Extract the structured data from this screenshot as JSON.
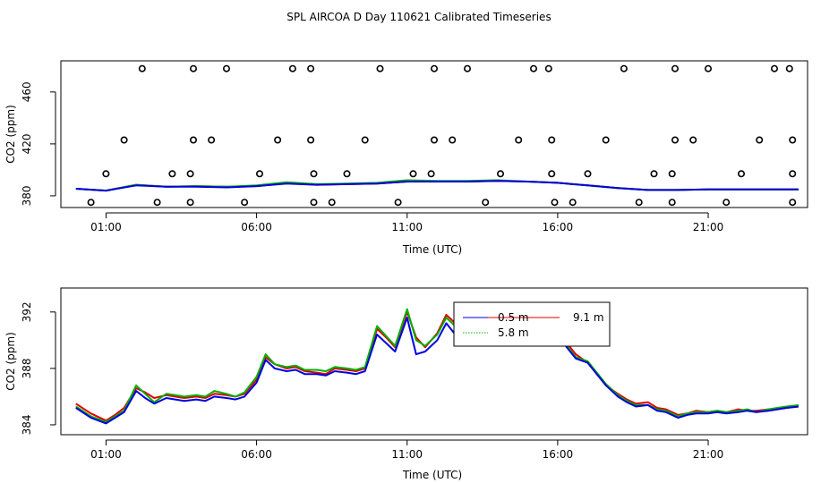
{
  "title": "SPL AIRCOA D  Day 110621  Calibrated Timeseries",
  "colors": {
    "red": "#e00000",
    "green": "#00b000",
    "blue": "#0000e0",
    "axis": "#000000"
  },
  "chart_data": [
    {
      "type": "line+scatter",
      "xlabel": "Time (UTC)",
      "ylabel": "CO2 (ppm)",
      "x_ticks": [
        "01:00",
        "06:00",
        "11:00",
        "16:00",
        "21:00"
      ],
      "x_tick_hours": [
        1,
        6,
        11,
        16,
        21
      ],
      "y_ticks": [
        "380",
        "420",
        "460"
      ],
      "y_tick_values": [
        380,
        420,
        460
      ],
      "xlim": [
        -0.5,
        24.3
      ],
      "ylim": [
        371,
        484
      ],
      "grid": false,
      "markers": {
        "marker": "open-circle",
        "points": [
          [
            0.5,
            375
          ],
          [
            1.0,
            397
          ],
          [
            1.6,
            423
          ],
          [
            2.2,
            478
          ],
          [
            2.7,
            375
          ],
          [
            3.2,
            397
          ],
          [
            3.8,
            375
          ],
          [
            3.8,
            397
          ],
          [
            3.9,
            423
          ],
          [
            3.9,
            478
          ],
          [
            4.5,
            423
          ],
          [
            5.0,
            478
          ],
          [
            5.6,
            375
          ],
          [
            6.1,
            397
          ],
          [
            6.7,
            423
          ],
          [
            7.2,
            478
          ],
          [
            7.8,
            478
          ],
          [
            7.8,
            423
          ],
          [
            7.9,
            397
          ],
          [
            7.9,
            375
          ],
          [
            8.5,
            375
          ],
          [
            9.0,
            397
          ],
          [
            9.6,
            423
          ],
          [
            10.1,
            478
          ],
          [
            10.7,
            375
          ],
          [
            11.2,
            397
          ],
          [
            11.8,
            397
          ],
          [
            11.9,
            423
          ],
          [
            11.9,
            478
          ],
          [
            12.5,
            423
          ],
          [
            13.0,
            478
          ],
          [
            13.6,
            375
          ],
          [
            14.1,
            397
          ],
          [
            14.7,
            423
          ],
          [
            15.2,
            478
          ],
          [
            15.7,
            478
          ],
          [
            15.8,
            423
          ],
          [
            15.8,
            397
          ],
          [
            15.9,
            375
          ],
          [
            16.5,
            375
          ],
          [
            17.0,
            397
          ],
          [
            17.6,
            423
          ],
          [
            18.2,
            478
          ],
          [
            18.7,
            375
          ],
          [
            19.2,
            397
          ],
          [
            19.8,
            397
          ],
          [
            19.8,
            375
          ],
          [
            19.9,
            423
          ],
          [
            19.9,
            478
          ],
          [
            20.5,
            423
          ],
          [
            21.0,
            478
          ],
          [
            21.6,
            375
          ],
          [
            22.1,
            397
          ],
          [
            22.7,
            423
          ],
          [
            23.2,
            478
          ],
          [
            23.7,
            478
          ],
          [
            23.8,
            423
          ],
          [
            23.8,
            397
          ],
          [
            23.8,
            375
          ]
        ]
      },
      "series": [
        {
          "color": "red",
          "x": [
            0,
            1,
            2,
            3,
            4,
            5,
            6,
            7,
            8,
            9,
            10,
            11,
            12,
            13,
            14,
            15,
            16,
            17,
            18,
            19,
            20,
            21,
            22,
            23,
            24
          ],
          "y": [
            385.5,
            384,
            388.5,
            387,
            387.5,
            387,
            387.5,
            390,
            388.5,
            389,
            389.5,
            391,
            391,
            391,
            391.5,
            391,
            390,
            388,
            386,
            384.5,
            384.5,
            385,
            385,
            385,
            385
          ]
        },
        {
          "color": "green",
          "x": [
            0,
            1,
            2,
            3,
            4,
            5,
            6,
            7,
            8,
            9,
            10,
            11,
            12,
            13,
            14,
            15,
            16,
            17,
            18,
            19,
            20,
            21,
            22,
            23,
            24
          ],
          "y": [
            385.5,
            384,
            388.5,
            387,
            387.5,
            387,
            388,
            390.5,
            389,
            389.5,
            390,
            392,
            391.5,
            391.5,
            392,
            391,
            390,
            388,
            386,
            384.5,
            384.5,
            385,
            385,
            385,
            385
          ]
        },
        {
          "color": "blue",
          "x": [
            0,
            1,
            2,
            3,
            4,
            5,
            6,
            7,
            8,
            9,
            10,
            11,
            12,
            13,
            14,
            15,
            16,
            17,
            18,
            19,
            20,
            21,
            22,
            23,
            24
          ],
          "y": [
            385.5,
            384,
            388,
            387,
            387,
            386.5,
            387.5,
            389.5,
            388.5,
            389,
            389.5,
            391,
            391,
            391,
            391.5,
            391,
            390,
            388,
            386,
            384.5,
            384.5,
            385,
            385,
            385,
            385
          ]
        }
      ]
    },
    {
      "type": "line",
      "xlabel": "Time (UTC)",
      "ylabel": "CO2 (ppm)",
      "x_ticks": [
        "01:00",
        "06:00",
        "11:00",
        "16:00",
        "21:00"
      ],
      "x_tick_hours": [
        1,
        6,
        11,
        16,
        21
      ],
      "y_ticks": [
        "384",
        "388",
        "392"
      ],
      "y_tick_values": [
        384,
        388,
        392
      ],
      "xlim": [
        -0.5,
        24.3
      ],
      "ylim": [
        383.3,
        393.7
      ],
      "grid": false,
      "legend": {
        "position": "top-center",
        "entries": [
          "9.1 m",
          "5.8 m",
          "0.5 m"
        ]
      },
      "series": [
        {
          "name": "9.1 m",
          "color": "red",
          "x": [
            0,
            0.5,
            1,
            1.3,
            1.6,
            2,
            2.3,
            2.6,
            3,
            3.3,
            3.6,
            4,
            4.3,
            4.6,
            5,
            5.3,
            5.6,
            6,
            6.3,
            6.6,
            7,
            7.3,
            7.6,
            8,
            8.3,
            8.6,
            9,
            9.3,
            9.6,
            10,
            10.3,
            10.6,
            11,
            11.3,
            11.6,
            12,
            12.3,
            12.6,
            13,
            13.3,
            13.6,
            14,
            14.3,
            14.6,
            15,
            15.3,
            15.6,
            16,
            16.3,
            16.6,
            17,
            17.3,
            17.6,
            18,
            18.3,
            18.6,
            19,
            19.3,
            19.6,
            20,
            20.3,
            20.6,
            21,
            21.3,
            21.6,
            22,
            22.3,
            22.6,
            23,
            23.3,
            23.6,
            24
          ],
          "y": [
            385.5,
            384.8,
            384.3,
            384.7,
            385.2,
            386.6,
            386.3,
            385.9,
            386.1,
            386.0,
            385.9,
            386.0,
            385.9,
            386.2,
            386.1,
            386.0,
            386.2,
            387.2,
            388.8,
            388.3,
            388.0,
            388.1,
            387.8,
            387.7,
            387.6,
            388.0,
            387.9,
            387.8,
            388.0,
            390.8,
            390.2,
            389.5,
            392.0,
            390.2,
            389.5,
            390.5,
            391.8,
            391.2,
            391.1,
            391.3,
            391.2,
            391.5,
            391.3,
            391.4,
            391.0,
            391.2,
            391.1,
            390.5,
            389.8,
            389.0,
            388.4,
            387.6,
            386.8,
            386.2,
            385.8,
            385.5,
            385.6,
            385.2,
            385.1,
            384.7,
            384.8,
            385.0,
            384.9,
            385.0,
            384.9,
            385.1,
            385.0,
            385.0,
            385.1,
            385.1,
            385.2,
            385.3
          ]
        },
        {
          "name": "5.8 m",
          "color": "green",
          "x": [
            0,
            0.5,
            1,
            1.3,
            1.6,
            2,
            2.3,
            2.6,
            3,
            3.3,
            3.6,
            4,
            4.3,
            4.6,
            5,
            5.3,
            5.6,
            6,
            6.3,
            6.6,
            7,
            7.3,
            7.6,
            8,
            8.3,
            8.6,
            9,
            9.3,
            9.6,
            10,
            10.3,
            10.6,
            11,
            11.3,
            11.6,
            12,
            12.3,
            12.6,
            13,
            13.3,
            13.6,
            14,
            14.3,
            14.6,
            15,
            15.3,
            15.6,
            16,
            16.3,
            16.6,
            17,
            17.3,
            17.6,
            18,
            18.3,
            18.6,
            19,
            19.3,
            19.6,
            20,
            20.3,
            20.6,
            21,
            21.3,
            21.6,
            22,
            22.3,
            22.6,
            23,
            23.3,
            23.6,
            24
          ],
          "y": [
            385.3,
            384.6,
            384.2,
            384.6,
            385.0,
            386.8,
            386.2,
            385.6,
            386.2,
            386.1,
            386.0,
            386.1,
            386.0,
            386.4,
            386.2,
            386.0,
            386.3,
            387.4,
            389.0,
            388.3,
            388.1,
            388.2,
            387.9,
            387.9,
            387.8,
            388.1,
            388.0,
            387.9,
            388.1,
            391.0,
            390.3,
            389.6,
            392.2,
            390.0,
            389.6,
            390.4,
            391.6,
            391.0,
            391.3,
            391.4,
            391.3,
            391.6,
            391.5,
            391.3,
            391.0,
            391.3,
            391.0,
            390.4,
            389.6,
            388.8,
            388.5,
            387.7,
            386.9,
            386.1,
            385.7,
            385.4,
            385.4,
            385.1,
            385.0,
            384.6,
            384.8,
            384.9,
            384.9,
            385.0,
            384.9,
            385.0,
            385.1,
            384.9,
            385.1,
            385.2,
            385.3,
            385.4
          ]
        },
        {
          "name": "0.5 m",
          "color": "blue",
          "x": [
            0,
            0.5,
            1,
            1.3,
            1.6,
            2,
            2.3,
            2.6,
            3,
            3.3,
            3.6,
            4,
            4.3,
            4.6,
            5,
            5.3,
            5.6,
            6,
            6.3,
            6.6,
            7,
            7.3,
            7.6,
            8,
            8.3,
            8.6,
            9,
            9.3,
            9.6,
            10,
            10.3,
            10.6,
            11,
            11.3,
            11.6,
            12,
            12.3,
            12.6,
            13,
            13.3,
            13.6,
            14,
            14.3,
            14.6,
            15,
            15.3,
            15.6,
            16,
            16.3,
            16.6,
            17,
            17.3,
            17.6,
            18,
            18.3,
            18.6,
            19,
            19.3,
            19.6,
            20,
            20.3,
            20.6,
            21,
            21.3,
            21.6,
            22,
            22.3,
            22.6,
            23,
            23.3,
            23.6,
            24
          ],
          "y": [
            385.2,
            384.5,
            384.1,
            384.5,
            384.9,
            386.4,
            385.9,
            385.5,
            385.9,
            385.8,
            385.7,
            385.8,
            385.7,
            386.0,
            385.9,
            385.8,
            386.0,
            387.0,
            388.6,
            388.0,
            387.8,
            387.9,
            387.6,
            387.6,
            387.5,
            387.8,
            387.7,
            387.6,
            387.8,
            390.4,
            389.8,
            389.2,
            391.6,
            389.0,
            389.2,
            390.0,
            391.2,
            390.4,
            391.0,
            391.2,
            391.0,
            391.4,
            391.2,
            391.1,
            390.8,
            391.1,
            390.8,
            390.3,
            389.5,
            388.7,
            388.4,
            387.6,
            386.8,
            386.0,
            385.6,
            385.3,
            385.4,
            385.0,
            384.9,
            384.5,
            384.7,
            384.8,
            384.8,
            384.9,
            384.8,
            384.9,
            385.0,
            384.9,
            385.0,
            385.1,
            385.2,
            385.3
          ]
        }
      ]
    }
  ]
}
